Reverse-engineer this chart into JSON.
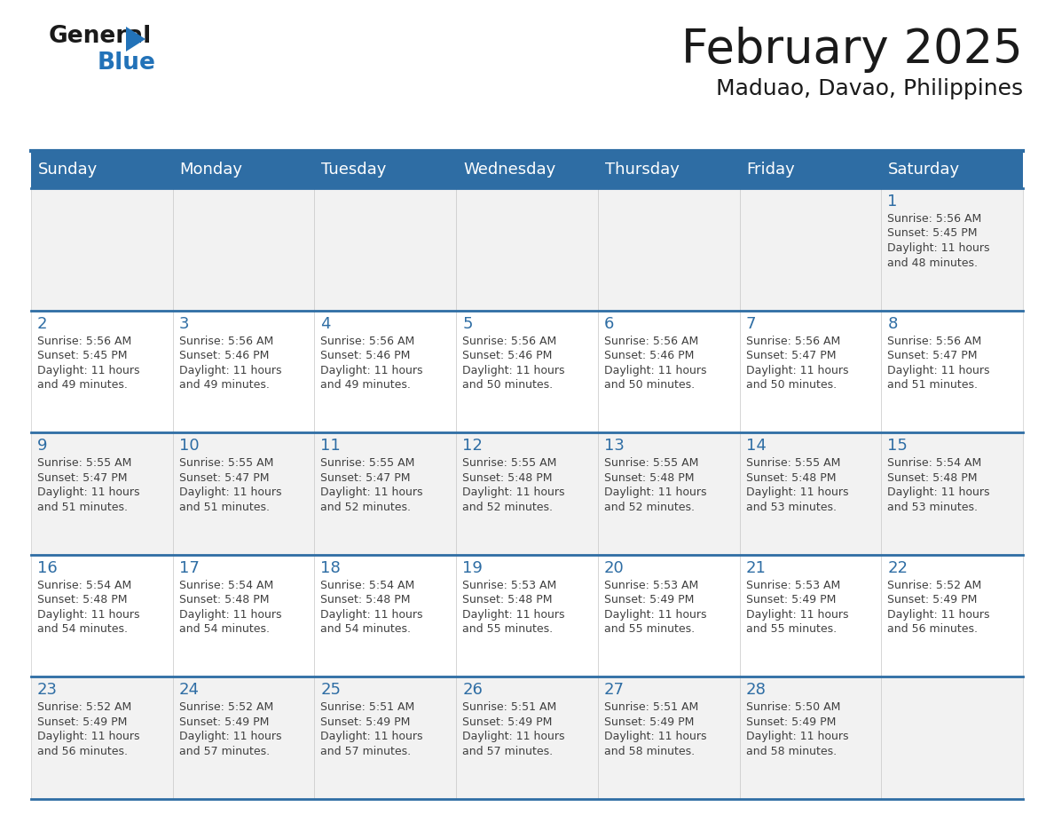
{
  "title": "February 2025",
  "subtitle": "Maduao, Davao, Philippines",
  "days_of_week": [
    "Sunday",
    "Monday",
    "Tuesday",
    "Wednesday",
    "Thursday",
    "Friday",
    "Saturday"
  ],
  "header_bg": "#2E6DA4",
  "header_text": "#FFFFFF",
  "cell_bg_odd": "#F2F2F2",
  "cell_bg_even": "#FFFFFF",
  "day_number_color": "#2E6DA4",
  "text_color": "#404040",
  "line_color": "#2E6DA4",
  "calendar_data": [
    [
      null,
      null,
      null,
      null,
      null,
      null,
      {
        "day": 1,
        "sunrise": "5:56 AM",
        "sunset": "5:45 PM",
        "daylight": "11 hours and 48 minutes"
      }
    ],
    [
      {
        "day": 2,
        "sunrise": "5:56 AM",
        "sunset": "5:45 PM",
        "daylight": "11 hours and 49 minutes"
      },
      {
        "day": 3,
        "sunrise": "5:56 AM",
        "sunset": "5:46 PM",
        "daylight": "11 hours and 49 minutes"
      },
      {
        "day": 4,
        "sunrise": "5:56 AM",
        "sunset": "5:46 PM",
        "daylight": "11 hours and 49 minutes"
      },
      {
        "day": 5,
        "sunrise": "5:56 AM",
        "sunset": "5:46 PM",
        "daylight": "11 hours and 50 minutes"
      },
      {
        "day": 6,
        "sunrise": "5:56 AM",
        "sunset": "5:46 PM",
        "daylight": "11 hours and 50 minutes"
      },
      {
        "day": 7,
        "sunrise": "5:56 AM",
        "sunset": "5:47 PM",
        "daylight": "11 hours and 50 minutes"
      },
      {
        "day": 8,
        "sunrise": "5:56 AM",
        "sunset": "5:47 PM",
        "daylight": "11 hours and 51 minutes"
      }
    ],
    [
      {
        "day": 9,
        "sunrise": "5:55 AM",
        "sunset": "5:47 PM",
        "daylight": "11 hours and 51 minutes"
      },
      {
        "day": 10,
        "sunrise": "5:55 AM",
        "sunset": "5:47 PM",
        "daylight": "11 hours and 51 minutes"
      },
      {
        "day": 11,
        "sunrise": "5:55 AM",
        "sunset": "5:47 PM",
        "daylight": "11 hours and 52 minutes"
      },
      {
        "day": 12,
        "sunrise": "5:55 AM",
        "sunset": "5:48 PM",
        "daylight": "11 hours and 52 minutes"
      },
      {
        "day": 13,
        "sunrise": "5:55 AM",
        "sunset": "5:48 PM",
        "daylight": "11 hours and 52 minutes"
      },
      {
        "day": 14,
        "sunrise": "5:55 AM",
        "sunset": "5:48 PM",
        "daylight": "11 hours and 53 minutes"
      },
      {
        "day": 15,
        "sunrise": "5:54 AM",
        "sunset": "5:48 PM",
        "daylight": "11 hours and 53 minutes"
      }
    ],
    [
      {
        "day": 16,
        "sunrise": "5:54 AM",
        "sunset": "5:48 PM",
        "daylight": "11 hours and 54 minutes"
      },
      {
        "day": 17,
        "sunrise": "5:54 AM",
        "sunset": "5:48 PM",
        "daylight": "11 hours and 54 minutes"
      },
      {
        "day": 18,
        "sunrise": "5:54 AM",
        "sunset": "5:48 PM",
        "daylight": "11 hours and 54 minutes"
      },
      {
        "day": 19,
        "sunrise": "5:53 AM",
        "sunset": "5:48 PM",
        "daylight": "11 hours and 55 minutes"
      },
      {
        "day": 20,
        "sunrise": "5:53 AM",
        "sunset": "5:49 PM",
        "daylight": "11 hours and 55 minutes"
      },
      {
        "day": 21,
        "sunrise": "5:53 AM",
        "sunset": "5:49 PM",
        "daylight": "11 hours and 55 minutes"
      },
      {
        "day": 22,
        "sunrise": "5:52 AM",
        "sunset": "5:49 PM",
        "daylight": "11 hours and 56 minutes"
      }
    ],
    [
      {
        "day": 23,
        "sunrise": "5:52 AM",
        "sunset": "5:49 PM",
        "daylight": "11 hours and 56 minutes"
      },
      {
        "day": 24,
        "sunrise": "5:52 AM",
        "sunset": "5:49 PM",
        "daylight": "11 hours and 57 minutes"
      },
      {
        "day": 25,
        "sunrise": "5:51 AM",
        "sunset": "5:49 PM",
        "daylight": "11 hours and 57 minutes"
      },
      {
        "day": 26,
        "sunrise": "5:51 AM",
        "sunset": "5:49 PM",
        "daylight": "11 hours and 57 minutes"
      },
      {
        "day": 27,
        "sunrise": "5:51 AM",
        "sunset": "5:49 PM",
        "daylight": "11 hours and 58 minutes"
      },
      {
        "day": 28,
        "sunrise": "5:50 AM",
        "sunset": "5:49 PM",
        "daylight": "11 hours and 58 minutes"
      },
      null
    ]
  ],
  "logo_color_general": "#1a1a1a",
  "logo_color_blue": "#2272B8",
  "logo_triangle_color": "#2272B8",
  "title_fontsize": 38,
  "subtitle_fontsize": 18,
  "header_fontsize": 13,
  "day_num_fontsize": 13,
  "cell_text_fontsize": 9
}
